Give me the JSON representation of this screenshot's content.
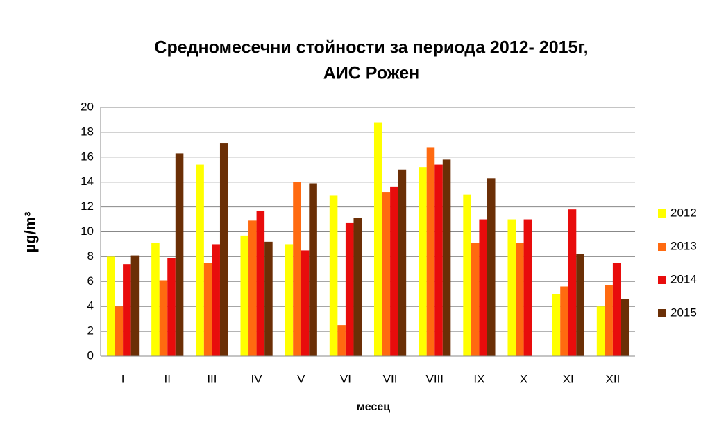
{
  "chart_data": {
    "type": "bar",
    "title": [
      "Средномесечни стойности за периода 2012- 2015г,",
      "АИС Рожен"
    ],
    "x_label": "месец",
    "y_label": "µg/m³",
    "categories": [
      "I",
      "II",
      "III",
      "IV",
      "V",
      "VI",
      "VII",
      "VIII",
      "IX",
      "X",
      "XI",
      "XII"
    ],
    "series": [
      {
        "name": "2012",
        "color": "#ffff00",
        "values": [
          8.0,
          9.1,
          15.4,
          9.7,
          9.0,
          12.9,
          18.8,
          15.2,
          13.0,
          11.0,
          5.0,
          4.0
        ]
      },
      {
        "name": "2013",
        "color": "#ff6a10",
        "values": [
          4.0,
          6.1,
          7.5,
          10.9,
          14.0,
          2.5,
          13.2,
          16.8,
          9.1,
          9.1,
          5.6,
          5.7
        ]
      },
      {
        "name": "2014",
        "color": "#e80c0c",
        "values": [
          7.4,
          7.9,
          9.0,
          11.7,
          8.5,
          10.7,
          13.6,
          15.4,
          11.0,
          11.0,
          11.8,
          7.5
        ]
      },
      {
        "name": "2015",
        "color": "#6b2f06",
        "values": [
          8.1,
          16.3,
          17.1,
          9.2,
          13.9,
          11.1,
          15.0,
          15.8,
          14.3,
          null,
          8.2,
          4.6
        ]
      }
    ],
    "ylim": [
      0,
      20
    ],
    "yticks": [
      0,
      2,
      4,
      6,
      8,
      10,
      12,
      14,
      16,
      18,
      20
    ],
    "grid": true,
    "legend": "right"
  }
}
